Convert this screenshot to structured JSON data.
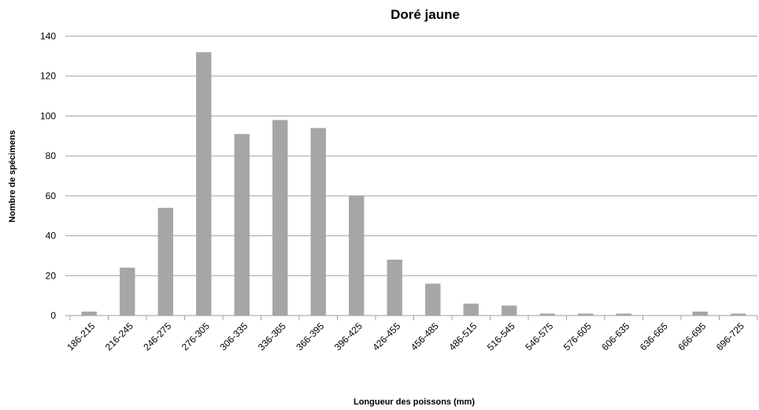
{
  "chart_data": {
    "type": "bar",
    "title": "Doré jaune",
    "x_label": "Longueur des poissons (mm)",
    "y_label": "Nombre de spécimens",
    "categories": [
      "186-215",
      "216-245",
      "246-275",
      "276-305",
      "306-335",
      "336-365",
      "366-395",
      "396-425",
      "426-455",
      "456-485",
      "486-515",
      "516-545",
      "546-575",
      "576-605",
      "606-635",
      "636-665",
      "666-695",
      "696-725"
    ],
    "values": [
      2,
      24,
      54,
      132,
      91,
      98,
      94,
      60,
      28,
      16,
      6,
      5,
      1,
      1,
      1,
      0,
      2,
      1
    ],
    "color": "#a6a6a6",
    "ylim": [
      0,
      140
    ],
    "yticks": [
      0,
      20,
      40,
      60,
      80,
      100,
      120,
      140
    ],
    "grid": true
  }
}
